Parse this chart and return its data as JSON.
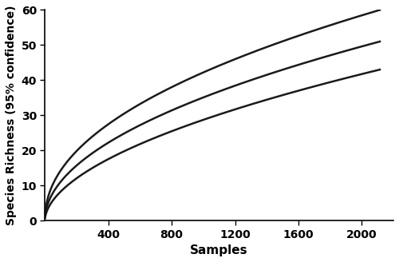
{
  "xlabel": "Samples",
  "ylabel": "Species Richness (95% confidence)",
  "xlim": [
    0,
    2200
  ],
  "ylim": [
    0,
    60
  ],
  "xticks": [
    400,
    800,
    1200,
    1600,
    2000
  ],
  "yticks": [
    0,
    10,
    20,
    30,
    40,
    50,
    60
  ],
  "x_max": 2114,
  "uci": 60,
  "mean": 51,
  "lci": 43,
  "uci_power": 0.47,
  "mean_power": 0.5,
  "lci_power": 0.54,
  "line_color": "#1a1a1a",
  "line_width": 1.8,
  "bg_color": "#ffffff",
  "xlabel_fontsize": 11,
  "ylabel_fontsize": 10,
  "tick_labelsize": 10
}
